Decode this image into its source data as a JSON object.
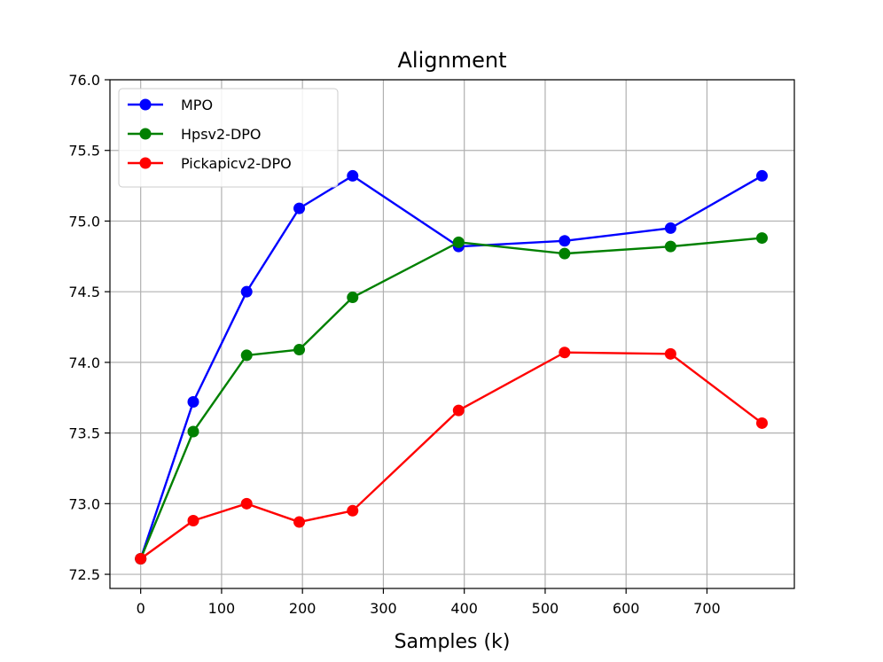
{
  "chart_data": {
    "type": "line",
    "title": "Alignment",
    "xlabel": "Samples (k)",
    "ylabel": "",
    "xlim": [
      -38,
      808
    ],
    "ylim": [
      72.4,
      76.0
    ],
    "xticks": [
      0,
      100,
      200,
      300,
      400,
      500,
      600,
      700
    ],
    "yticks": [
      72.5,
      73.0,
      73.5,
      74.0,
      74.5,
      75.0,
      75.5,
      76.0
    ],
    "xtick_labels": [
      "0",
      "100",
      "200",
      "300",
      "400",
      "500",
      "600",
      "700"
    ],
    "ytick_labels": [
      "72.5",
      "73.0",
      "73.5",
      "74.0",
      "74.5",
      "75.0",
      "75.5",
      "76.0"
    ],
    "grid": true,
    "legend_position": "top-left",
    "x": [
      0,
      65,
      131,
      196,
      262,
      393,
      524,
      655,
      768
    ],
    "series": [
      {
        "name": "MPO",
        "color": "#0000ff",
        "values": [
          72.61,
          73.72,
          74.5,
          75.09,
          75.32,
          74.82,
          74.86,
          74.95,
          75.32
        ]
      },
      {
        "name": "Hpsv2-DPO",
        "color": "#008000",
        "values": [
          72.61,
          73.51,
          74.05,
          74.09,
          74.46,
          74.85,
          74.77,
          74.82,
          74.88
        ]
      },
      {
        "name": "Pickapicv2-DPO",
        "color": "#ff0000",
        "values": [
          72.61,
          72.88,
          73.0,
          72.87,
          72.95,
          73.66,
          74.07,
          74.06,
          73.57
        ]
      }
    ]
  }
}
